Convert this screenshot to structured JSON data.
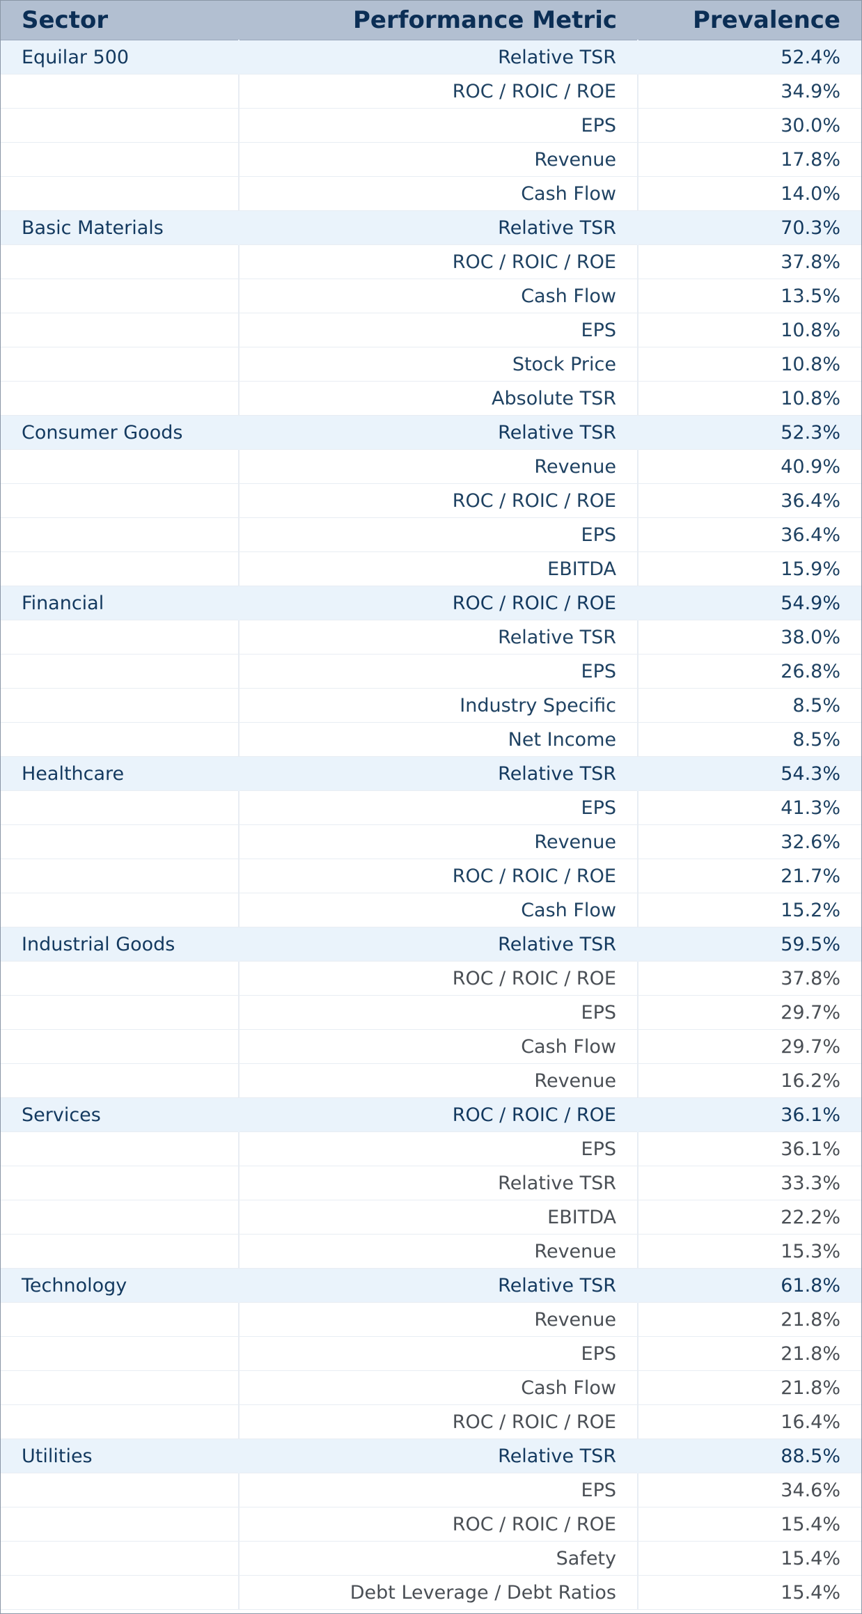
{
  "header": {
    "sector": "Sector",
    "metric": "Performance Metric",
    "prevalence": "Prevalence"
  },
  "sectors": [
    {
      "name": "Equilar 500",
      "tone": "blue",
      "rows": [
        {
          "metric": "Relative TSR",
          "value": "52.4%"
        },
        {
          "metric": "ROC / ROIC / ROE",
          "value": "34.9%"
        },
        {
          "metric": "EPS",
          "value": "30.0%"
        },
        {
          "metric": "Revenue",
          "value": "17.8%"
        },
        {
          "metric": "Cash Flow",
          "value": "14.0%"
        }
      ]
    },
    {
      "name": "Basic Materials",
      "tone": "blue",
      "rows": [
        {
          "metric": "Relative TSR",
          "value": "70.3%"
        },
        {
          "metric": "ROC / ROIC / ROE",
          "value": "37.8%"
        },
        {
          "metric": "Cash Flow",
          "value": "13.5%"
        },
        {
          "metric": "EPS",
          "value": "10.8%"
        },
        {
          "metric": "Stock Price",
          "value": "10.8%"
        },
        {
          "metric": "Absolute TSR",
          "value": "10.8%"
        }
      ]
    },
    {
      "name": "Consumer Goods",
      "tone": "blue",
      "rows": [
        {
          "metric": "Relative TSR",
          "value": "52.3%"
        },
        {
          "metric": "Revenue",
          "value": "40.9%"
        },
        {
          "metric": "ROC / ROIC / ROE",
          "value": "36.4%"
        },
        {
          "metric": "EPS",
          "value": "36.4%"
        },
        {
          "metric": "EBITDA",
          "value": "15.9%"
        }
      ]
    },
    {
      "name": "Financial",
      "tone": "blue",
      "rows": [
        {
          "metric": "ROC / ROIC / ROE",
          "value": "54.9%"
        },
        {
          "metric": "Relative TSR",
          "value": "38.0%"
        },
        {
          "metric": "EPS",
          "value": "26.8%"
        },
        {
          "metric": "Industry Specific",
          "value": "8.5%"
        },
        {
          "metric": "Net Income",
          "value": "8.5%"
        }
      ]
    },
    {
      "name": "Healthcare",
      "tone": "blue",
      "rows": [
        {
          "metric": "Relative TSR",
          "value": "54.3%"
        },
        {
          "metric": "EPS",
          "value": "41.3%"
        },
        {
          "metric": "Revenue",
          "value": "32.6%"
        },
        {
          "metric": "ROC / ROIC / ROE",
          "value": "21.7%"
        },
        {
          "metric": "Cash Flow",
          "value": "15.2%"
        }
      ]
    },
    {
      "name": "Industrial Goods",
      "tone": "gray",
      "rows": [
        {
          "metric": "Relative TSR",
          "value": "59.5%"
        },
        {
          "metric": "ROC / ROIC / ROE",
          "value": "37.8%"
        },
        {
          "metric": "EPS",
          "value": "29.7%"
        },
        {
          "metric": "Cash Flow",
          "value": "29.7%"
        },
        {
          "metric": "Revenue",
          "value": "16.2%"
        }
      ]
    },
    {
      "name": "Services",
      "tone": "gray",
      "rows": [
        {
          "metric": "ROC / ROIC / ROE",
          "value": "36.1%"
        },
        {
          "metric": "EPS",
          "value": "36.1%"
        },
        {
          "metric": "Relative TSR",
          "value": "33.3%"
        },
        {
          "metric": "EBITDA",
          "value": "22.2%"
        },
        {
          "metric": "Revenue",
          "value": "15.3%"
        }
      ]
    },
    {
      "name": "Technology",
      "tone": "gray",
      "rows": [
        {
          "metric": "Relative TSR",
          "value": "61.8%"
        },
        {
          "metric": "Revenue",
          "value": "21.8%"
        },
        {
          "metric": "EPS",
          "value": "21.8%"
        },
        {
          "metric": "Cash Flow",
          "value": "21.8%"
        },
        {
          "metric": "ROC / ROIC / ROE",
          "value": "16.4%"
        }
      ]
    },
    {
      "name": "Utilities",
      "tone": "gray",
      "rows": [
        {
          "metric": "Relative TSR",
          "value": "88.5%"
        },
        {
          "metric": "EPS",
          "value": "34.6%"
        },
        {
          "metric": "ROC / ROIC / ROE",
          "value": "15.4%"
        },
        {
          "metric": "Safety",
          "value": "15.4%"
        },
        {
          "metric": "Debt Leverage / Debt Ratios",
          "value": "15.4%"
        }
      ]
    }
  ]
}
